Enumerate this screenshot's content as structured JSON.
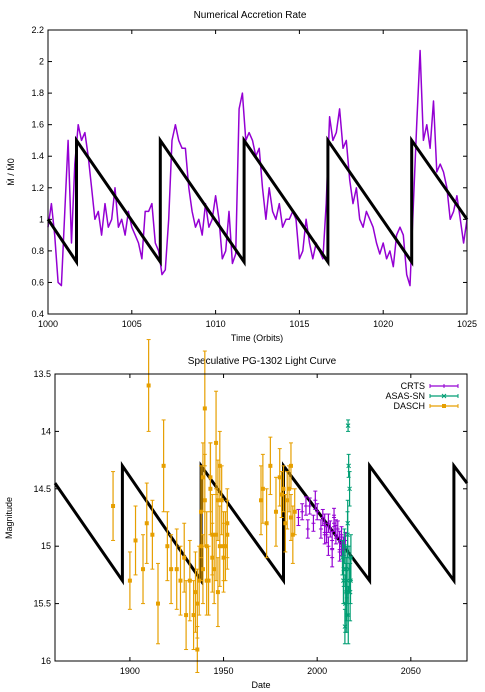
{
  "chart_data": [
    {
      "type": "line",
      "title": "Numerical Accretion Rate",
      "xlabel": "Time (Orbits)",
      "ylabel": "Ṁ / Ṁ0",
      "xlim": [
        1000,
        1025
      ],
      "ylim": [
        0.4,
        2.2
      ],
      "xticks": [
        1000,
        1005,
        1010,
        1015,
        1020,
        1025
      ],
      "yticks": [
        0.4,
        0.6,
        0.8,
        1,
        1.2,
        1.4,
        1.6,
        1.8,
        2,
        2.2
      ],
      "xtick_labels": [
        "1000",
        "1005",
        "1010",
        "1015",
        "1020",
        "1025"
      ],
      "ytick_labels": [
        "0.4",
        "0.6",
        "0.8",
        "1",
        "1.2",
        "1.4",
        "1.6",
        "1.8",
        "2",
        "2.2"
      ],
      "colors": {
        "model": "#000000",
        "simulation": "#9400d3"
      },
      "series": [
        {
          "role": "sawtooth-model",
          "x": [
            1000.0,
            1001.7,
            1001.7,
            1006.7,
            1006.7,
            1011.7,
            1011.7,
            1016.7,
            1016.7,
            1021.7,
            1021.7,
            1025.0
          ],
          "y": [
            1.0,
            0.73,
            1.5,
            0.73,
            1.5,
            0.73,
            1.5,
            0.73,
            1.5,
            0.73,
            1.5,
            1.0
          ]
        },
        {
          "role": "simulation",
          "x": [
            1000.0,
            1000.2,
            1000.4,
            1000.6,
            1000.8,
            1001.0,
            1001.2,
            1001.4,
            1001.6,
            1001.8,
            1002.0,
            1002.2,
            1002.4,
            1002.6,
            1002.8,
            1003.0,
            1003.2,
            1003.4,
            1003.6,
            1003.8,
            1004.0,
            1004.2,
            1004.4,
            1004.6,
            1004.8,
            1005.0,
            1005.2,
            1005.4,
            1005.6,
            1005.8,
            1006.0,
            1006.2,
            1006.4,
            1006.6,
            1006.8,
            1007.0,
            1007.2,
            1007.4,
            1007.6,
            1007.8,
            1008.0,
            1008.2,
            1008.4,
            1008.6,
            1008.8,
            1009.0,
            1009.2,
            1009.4,
            1009.6,
            1009.8,
            1010.0,
            1010.2,
            1010.4,
            1010.6,
            1010.8,
            1011.0,
            1011.2,
            1011.4,
            1011.6,
            1011.8,
            1012.0,
            1012.2,
            1012.4,
            1012.6,
            1012.8,
            1013.0,
            1013.2,
            1013.4,
            1013.6,
            1013.8,
            1014.0,
            1014.2,
            1014.4,
            1014.6,
            1014.8,
            1015.0,
            1015.2,
            1015.4,
            1015.6,
            1015.8,
            1016.0,
            1016.2,
            1016.4,
            1016.6,
            1016.8,
            1017.0,
            1017.2,
            1017.4,
            1017.6,
            1017.8,
            1018.0,
            1018.2,
            1018.4,
            1018.6,
            1018.8,
            1019.0,
            1019.2,
            1019.4,
            1019.6,
            1019.8,
            1020.0,
            1020.2,
            1020.4,
            1020.6,
            1020.8,
            1021.0,
            1021.2,
            1021.4,
            1021.6,
            1021.8,
            1022.0,
            1022.2,
            1022.4,
            1022.6,
            1022.8,
            1023.0,
            1023.2,
            1023.4,
            1023.6,
            1023.8,
            1024.0,
            1024.2,
            1024.4,
            1024.6,
            1024.8,
            1025.0
          ],
          "y": [
            0.95,
            1.1,
            0.9,
            0.6,
            0.58,
            1.05,
            1.5,
            0.85,
            1.35,
            1.6,
            1.5,
            1.55,
            1.4,
            1.2,
            1.0,
            1.05,
            0.9,
            1.1,
            0.95,
            1.0,
            1.2,
            0.95,
            1.0,
            0.9,
            1.05,
            0.95,
            0.9,
            0.85,
            0.75,
            1.05,
            1.05,
            1.1,
            0.85,
            0.8,
            0.65,
            0.68,
            1.0,
            1.5,
            1.6,
            1.5,
            1.45,
            1.45,
            1.2,
            1.05,
            0.95,
            1.0,
            0.9,
            1.1,
            0.95,
            1.0,
            1.15,
            1.0,
            0.75,
            0.8,
            1.05,
            0.72,
            0.78,
            1.7,
            1.8,
            1.5,
            1.55,
            1.5,
            1.4,
            1.45,
            1.2,
            1.0,
            1.2,
            1.05,
            1.0,
            1.1,
            0.95,
            1.0,
            1.0,
            1.05,
            1.0,
            0.75,
            0.8,
            1.0,
            0.85,
            0.75,
            0.85,
            0.8,
            0.75,
            1.1,
            1.65,
            1.5,
            1.55,
            1.7,
            1.45,
            1.5,
            1.25,
            1.1,
            1.2,
            1.0,
            0.95,
            1.05,
            1.0,
            0.95,
            0.85,
            0.78,
            0.85,
            0.75,
            0.8,
            0.7,
            0.9,
            0.95,
            0.9,
            0.65,
            0.58,
            1.1,
            1.6,
            2.07,
            1.5,
            1.6,
            1.45,
            1.75,
            1.3,
            1.35,
            1.3,
            1.2,
            1.0,
            1.05,
            1.15,
            1.0,
            0.85,
            1.0
          ]
        }
      ]
    },
    {
      "type": "scatter",
      "title": "Speculative PG-1302 Light Curve",
      "xlabel": "Date",
      "ylabel": "Magnitude",
      "xlim": [
        1860,
        2080
      ],
      "ylim": [
        16,
        13.5
      ],
      "y_inverted": true,
      "xticks": [
        1900,
        1950,
        2000,
        2050
      ],
      "yticks": [
        13.5,
        14,
        14.5,
        15,
        15.5,
        16
      ],
      "xtick_labels": [
        "1900",
        "1950",
        "2000",
        "2050"
      ],
      "ytick_labels": [
        "13.5",
        "14",
        "14.5",
        "15",
        "15.5",
        "16"
      ],
      "legend": {
        "position": "top-right",
        "entries": [
          "CRTS",
          "ASAS-SN",
          "DASCH"
        ]
      },
      "colors": {
        "model": "#000000",
        "CRTS": "#9400d3",
        "ASAS-SN": "#009e73",
        "DASCH": "#e69f00"
      },
      "model": {
        "x": [
          1860,
          1896,
          1896,
          1938,
          1938,
          1982,
          1982,
          2028,
          2028,
          2073,
          2073,
          2080
        ],
        "y": [
          14.45,
          15.3,
          14.3,
          15.3,
          14.3,
          15.3,
          14.3,
          15.3,
          14.3,
          15.3,
          14.3,
          14.45
        ]
      },
      "series": [
        {
          "name": "DASCH",
          "x": [
            1891,
            1900,
            1903,
            1907,
            1909,
            1910,
            1912,
            1915,
            1918,
            1920,
            1922,
            1925,
            1927,
            1929,
            1930,
            1932,
            1934,
            1935,
            1936,
            1937,
            1938,
            1939,
            1940,
            1940,
            1941,
            1942,
            1943,
            1944,
            1945,
            1946,
            1946,
            1947,
            1948,
            1949,
            1950,
            1951,
            1952,
            1936,
            1938,
            1941,
            1944,
            1947,
            1950,
            1939,
            1943,
            1948,
            1952,
            1970,
            1971,
            1973,
            1975,
            1978,
            1980,
            1982,
            1983,
            1984,
            1985,
            1986,
            1987,
            1988,
            1981,
            1986
          ],
          "y": [
            14.65,
            15.3,
            14.95,
            15.2,
            14.8,
            13.6,
            14.9,
            15.5,
            14.3,
            15.0,
            15.2,
            15.2,
            15.3,
            15.1,
            15.6,
            15.3,
            15.6,
            15.4,
            15.9,
            15.3,
            14.7,
            15.2,
            13.8,
            14.6,
            15.0,
            15.3,
            14.5,
            14.9,
            15.2,
            14.1,
            14.9,
            14.6,
            15.0,
            14.6,
            15.1,
            15.0,
            14.9,
            15.5,
            15.0,
            15.3,
            15.1,
            15.4,
            15.0,
            14.4,
            14.4,
            14.3,
            14.8,
            14.6,
            14.5,
            14.8,
            14.3,
            14.7,
            14.4,
            14.5,
            14.8,
            14.6,
            14.5,
            14.3,
            14.9,
            14.7,
            14.55,
            14.75
          ],
          "err": [
            0.3,
            0.25,
            0.3,
            0.3,
            0.35,
            0.4,
            0.3,
            0.35,
            0.4,
            0.3,
            0.3,
            0.35,
            0.3,
            0.3,
            0.3,
            0.35,
            0.3,
            0.35,
            0.2,
            0.3,
            0.4,
            0.3,
            0.5,
            0.4,
            0.3,
            0.3,
            0.4,
            0.35,
            0.3,
            0.45,
            0.4,
            0.35,
            0.35,
            0.3,
            0.3,
            0.3,
            0.3,
            0.3,
            0.3,
            0.3,
            0.3,
            0.3,
            0.3,
            0.3,
            0.3,
            0.3,
            0.3,
            0.3,
            0.3,
            0.3,
            0.25,
            0.3,
            0.25,
            0.2,
            0.25,
            0.25,
            0.2,
            0.2,
            0.25,
            0.2,
            0.2,
            0.2
          ]
        },
        {
          "name": "CRTS",
          "x": [
            1990,
            1992,
            1994,
            1995,
            1996,
            1998,
            1999,
            2000,
            2002,
            2003,
            2004,
            2005,
            2006,
            2007,
            2008,
            2009,
            2010,
            2011,
            2012,
            2013,
            2014,
            2015,
            2006,
            2008,
            2010,
            2012,
            2004,
            2009,
            2013
          ],
          "y": [
            14.75,
            14.7,
            14.65,
            14.85,
            14.65,
            14.8,
            14.6,
            14.7,
            14.85,
            14.75,
            14.8,
            14.9,
            14.8,
            14.85,
            14.95,
            14.8,
            14.9,
            14.85,
            14.95,
            14.9,
            15.0,
            14.95,
            15.0,
            15.1,
            14.85,
            15.05,
            14.9,
            14.75,
            15.0
          ],
          "err": [
            0.07,
            0.07,
            0.08,
            0.08,
            0.07,
            0.07,
            0.08,
            0.07,
            0.08,
            0.07,
            0.08,
            0.07,
            0.08,
            0.07,
            0.08,
            0.07,
            0.08,
            0.07,
            0.08,
            0.07,
            0.08,
            0.07,
            0.08,
            0.08,
            0.08,
            0.08,
            0.08,
            0.08,
            0.08
          ]
        },
        {
          "name": "ASAS-SN",
          "x": [
            2013.5,
            2014.0,
            2014.5,
            2015.0,
            2015.3,
            2015.6,
            2016.0,
            2016.3,
            2016.6,
            2017.0,
            2017.3,
            2017.6,
            2018.0,
            2016.5,
            2016.8,
            2014.8,
            2015.8,
            2017.8,
            2014.2,
            2016.2
          ],
          "y": [
            15.1,
            15.3,
            15.0,
            15.5,
            15.2,
            15.4,
            15.3,
            14.8,
            15.6,
            15.2,
            14.5,
            15.4,
            15.1,
            13.95,
            14.3,
            15.7,
            15.6,
            15.3,
            15.2,
            14.9
          ],
          "err": [
            0.15,
            0.2,
            0.15,
            0.25,
            0.2,
            0.25,
            0.2,
            0.2,
            0.25,
            0.2,
            0.15,
            0.25,
            0.2,
            0.05,
            0.1,
            0.15,
            0.15,
            0.2,
            0.15,
            0.2
          ]
        }
      ]
    }
  ]
}
